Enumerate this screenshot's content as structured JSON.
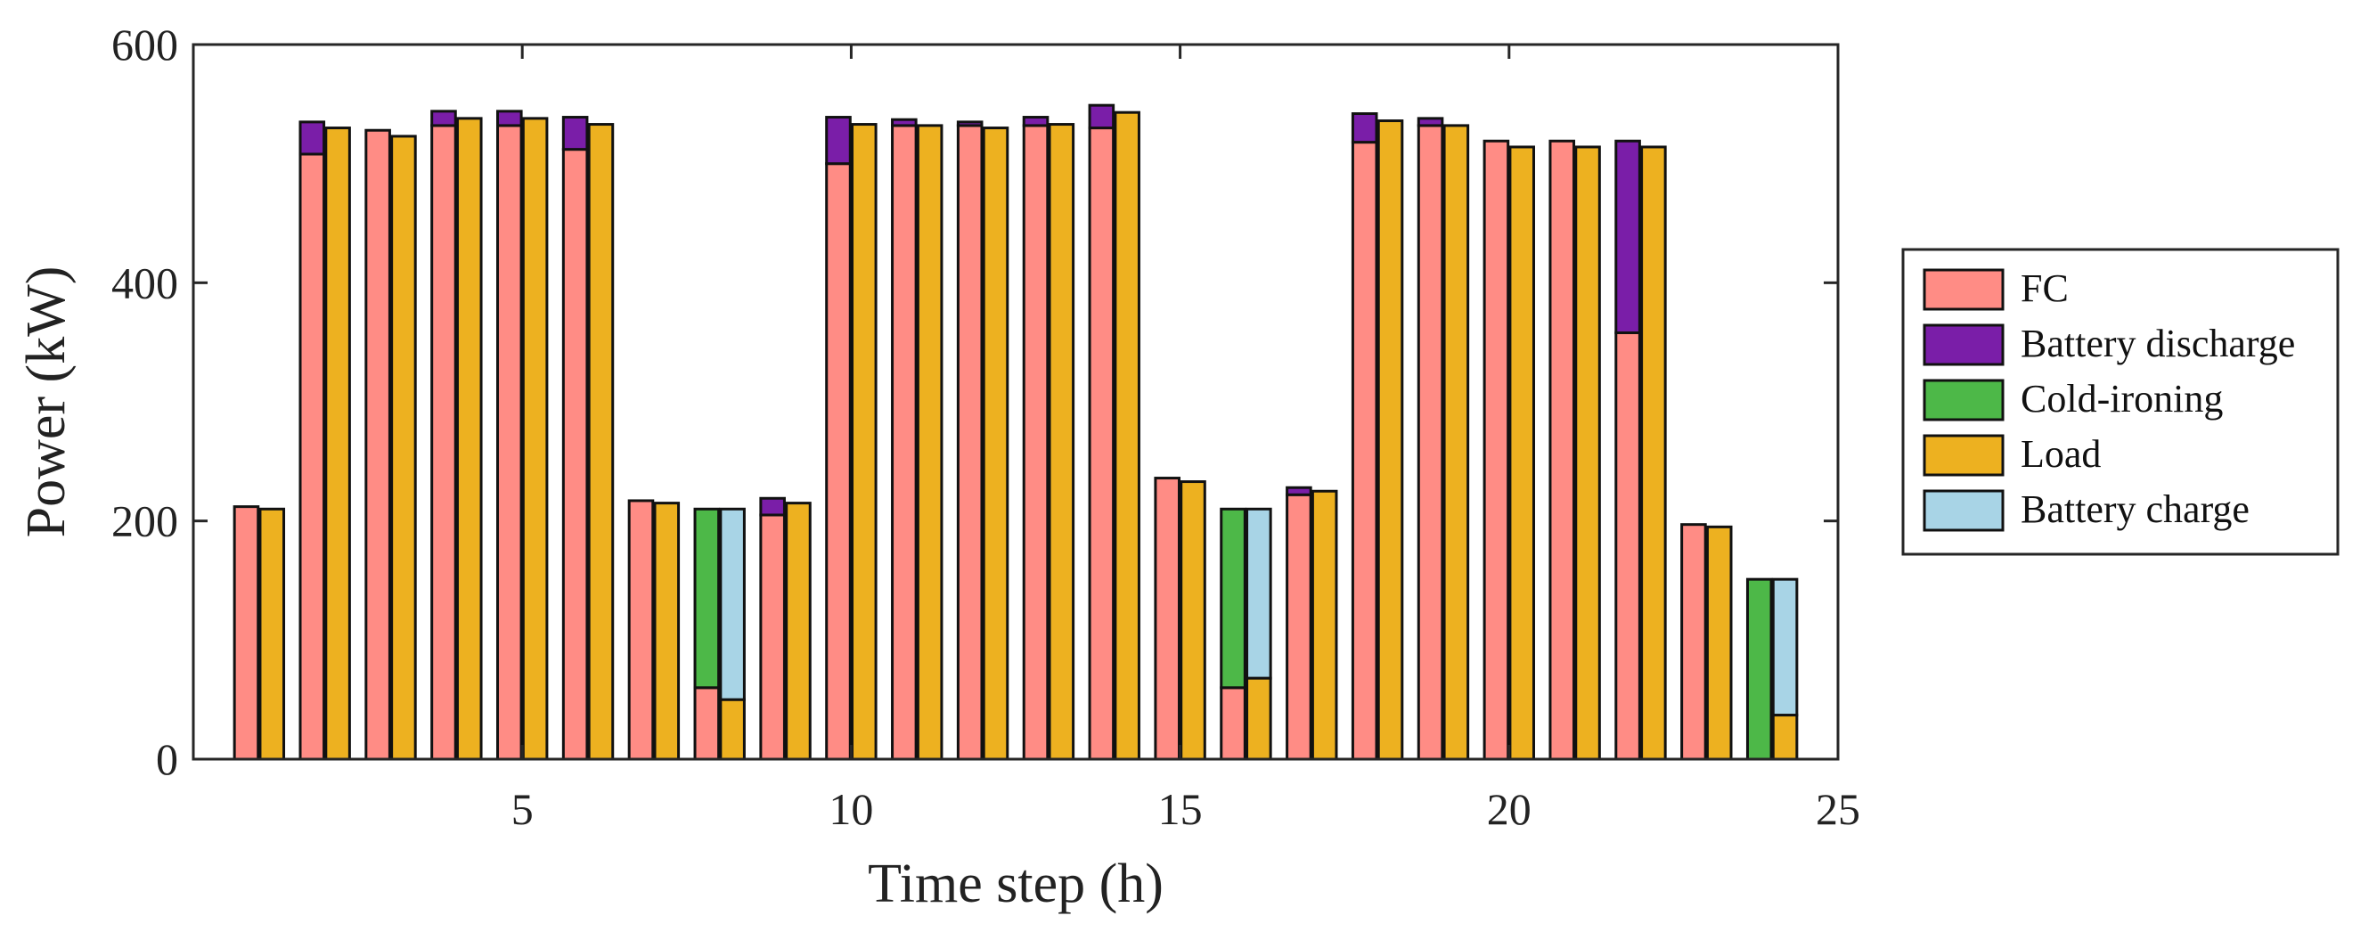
{
  "chart_data": {
    "type": "bar",
    "title": "",
    "xlabel": "Time step (h)",
    "ylabel": "Power (kW)",
    "xlim": [
      0,
      25
    ],
    "ylim": [
      0,
      600
    ],
    "xticks": [
      5,
      10,
      15,
      20,
      25
    ],
    "yticks": [
      0,
      200,
      400,
      600
    ],
    "grid": false,
    "legend_position": "right",
    "x": [
      1,
      2,
      3,
      4,
      5,
      6,
      7,
      8,
      9,
      10,
      11,
      12,
      13,
      14,
      15,
      16,
      17,
      18,
      19,
      20,
      21,
      22,
      23,
      24
    ],
    "supply_stack": [
      {
        "name": "FC",
        "color": "#FF8C85",
        "values": [
          212,
          508,
          528,
          532,
          532,
          512,
          217,
          60,
          205,
          500,
          532,
          532,
          532,
          530,
          236,
          60,
          222,
          518,
          532,
          519,
          519,
          358,
          197,
          0
        ]
      },
      {
        "name": "Battery discharge",
        "color": "#7A1EA8",
        "values": [
          0,
          27,
          0,
          12,
          12,
          27,
          0,
          0,
          14,
          39,
          5,
          3,
          7,
          19,
          0,
          0,
          6,
          24,
          6,
          0,
          0,
          161,
          0,
          0
        ]
      },
      {
        "name": "Cold-ironing",
        "color": "#4DB848",
        "values": [
          0,
          0,
          0,
          0,
          0,
          0,
          0,
          150,
          0,
          0,
          0,
          0,
          0,
          0,
          0,
          150,
          0,
          0,
          0,
          0,
          0,
          0,
          0,
          151
        ]
      }
    ],
    "demand_stack": [
      {
        "name": "Load",
        "color": "#EDB120",
        "values": [
          210,
          530,
          523,
          538,
          538,
          533,
          215,
          50,
          215,
          533,
          532,
          530,
          533,
          543,
          233,
          68,
          225,
          536,
          532,
          514,
          514,
          514,
          195,
          37
        ]
      },
      {
        "name": "Battery charge",
        "color": "#A8D4E6",
        "values": [
          0,
          0,
          0,
          0,
          0,
          0,
          0,
          160,
          0,
          0,
          0,
          0,
          0,
          0,
          0,
          142,
          0,
          0,
          0,
          0,
          0,
          0,
          0,
          114
        ]
      }
    ],
    "legend": [
      {
        "label": "FC",
        "color": "#FF8C85"
      },
      {
        "label": "Battery discharge",
        "color": "#7A1EA8"
      },
      {
        "label": "Cold-ironing",
        "color": "#4DB848"
      },
      {
        "label": "Load",
        "color": "#EDB120"
      },
      {
        "label": "Battery charge",
        "color": "#A8D4E6"
      }
    ]
  }
}
